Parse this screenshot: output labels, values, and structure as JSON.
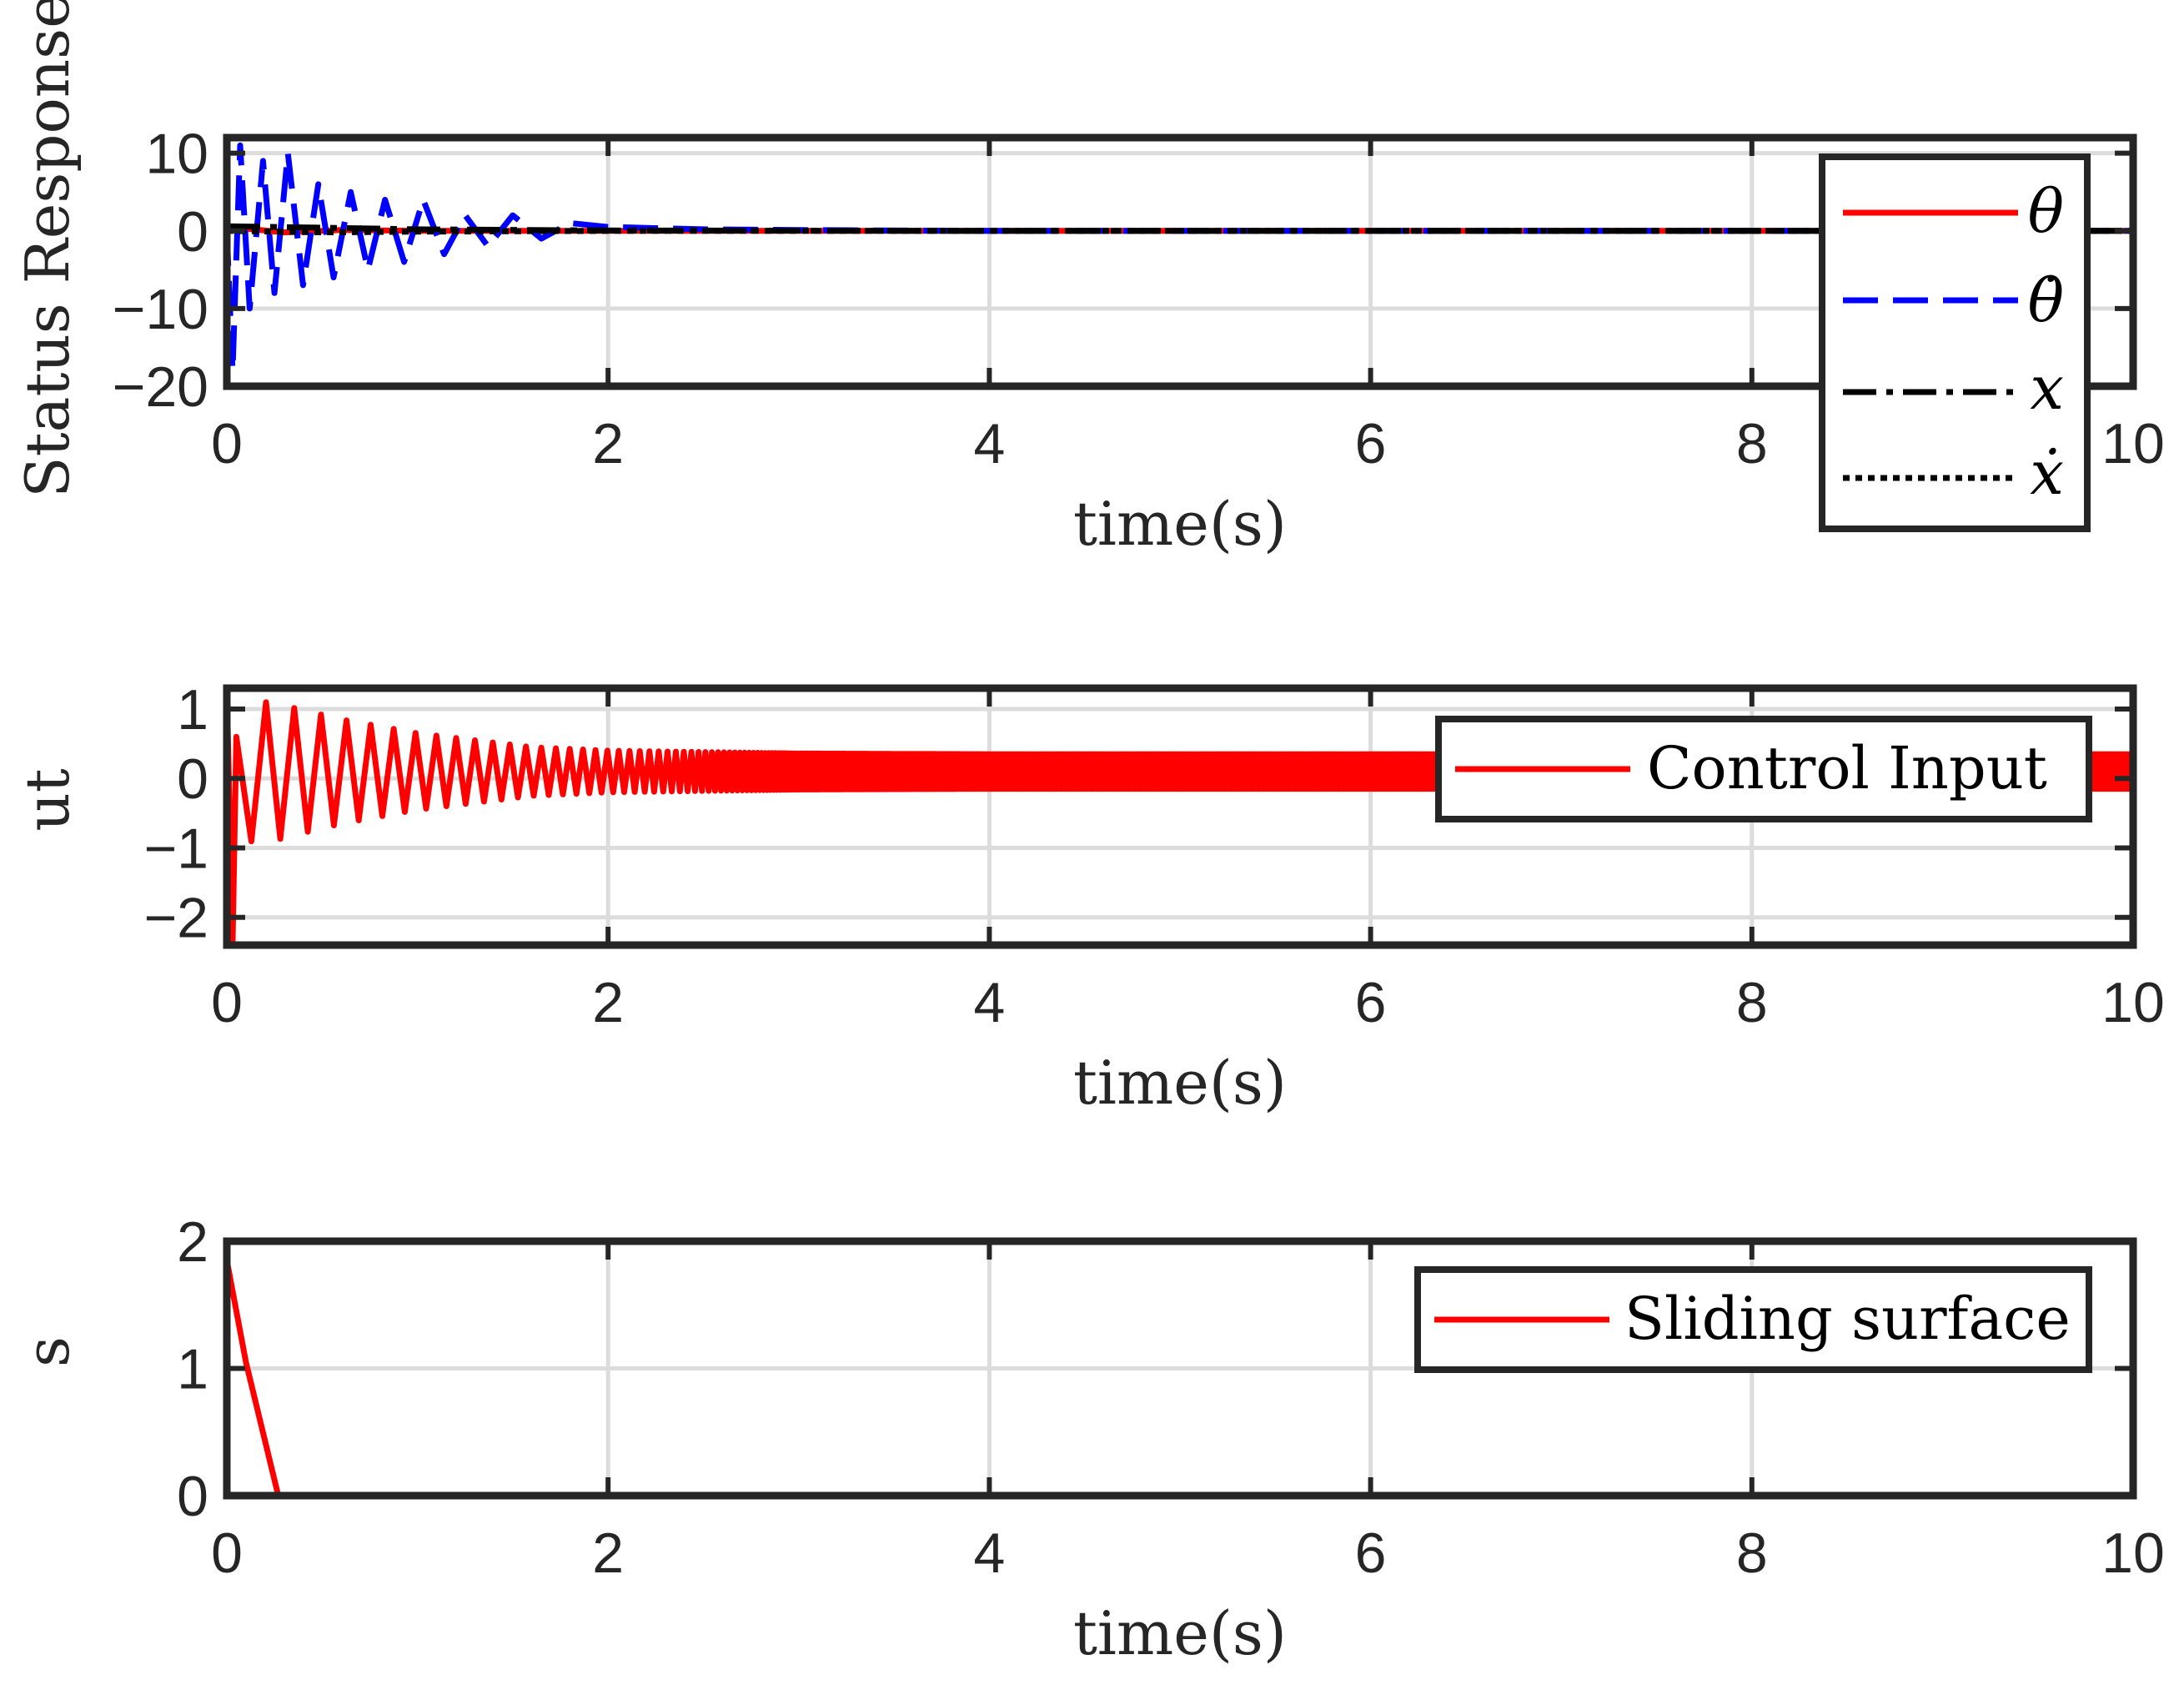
{
  "chart_data": [
    {
      "type": "line",
      "title": "",
      "xlabel": "time(s)",
      "ylabel": "Status Response",
      "xlim": [
        0,
        10
      ],
      "ylim": [
        -20,
        12
      ],
      "xticks": [
        "0",
        "2",
        "4",
        "6",
        "8",
        "10"
      ],
      "yticks": [
        "10",
        "0",
        "−10",
        "−20"
      ],
      "ytick_values": [
        10,
        0,
        -10,
        -20
      ],
      "grid": true,
      "legend_position": "top-right",
      "series": [
        {
          "name": "θ",
          "color": "#ff0000",
          "style": "solid",
          "x": [
            0,
            0.1,
            0.3,
            0.6,
            1.0,
            2.0,
            4.0,
            6.0,
            8.0,
            10.0
          ],
          "values": [
            0.5,
            0.3,
            -0.2,
            0.1,
            0.0,
            0.0,
            0.0,
            0.0,
            0.0,
            0.0
          ]
        },
        {
          "name": "θ̇",
          "color": "#0000ff",
          "style": "dashed",
          "x": [
            0,
            0.03,
            0.07,
            0.12,
            0.19,
            0.25,
            0.32,
            0.4,
            0.48,
            0.56,
            0.65,
            0.74,
            0.83,
            0.93,
            1.03,
            1.14,
            1.25,
            1.37,
            1.5,
            1.65,
            1.8,
            2.0,
            2.5,
            3.0,
            4.0,
            6.0,
            8.0,
            10.0
          ],
          "values": [
            0,
            -18,
            11,
            -10,
            9,
            -8,
            10,
            -7,
            6,
            -6,
            5,
            -5,
            4,
            -4,
            4,
            -3,
            2,
            -2,
            2,
            -1,
            1,
            0.5,
            0.2,
            0.1,
            0.0,
            0.0,
            0.0,
            0.0
          ]
        },
        {
          "name": "x",
          "color": "#000000",
          "style": "dashdot",
          "x": [
            0,
            0.5,
            1.0,
            2.0,
            4.0,
            6.0,
            8.0,
            10.0
          ],
          "values": [
            0.6,
            0.4,
            0.2,
            0.05,
            0.0,
            0.0,
            0.0,
            0.0
          ]
        },
        {
          "name": "ẋ",
          "color": "#000000",
          "style": "dotted",
          "x": [
            0,
            0.5,
            1.0,
            2.0,
            4.0,
            6.0,
            8.0,
            10.0
          ],
          "values": [
            0.0,
            -0.2,
            -0.1,
            0.0,
            0.0,
            0.0,
            0.0,
            0.0
          ]
        }
      ]
    },
    {
      "type": "line",
      "title": "",
      "xlabel": "time(s)",
      "ylabel": "ut",
      "xlim": [
        0,
        10
      ],
      "ylim": [
        -2.4,
        1.3
      ],
      "xticks": [
        "0",
        "2",
        "4",
        "6",
        "8",
        "10"
      ],
      "yticks": [
        "1",
        "0",
        "−1",
        "−2"
      ],
      "ytick_values": [
        1,
        0,
        -1,
        -2
      ],
      "grid": true,
      "legend_position": "top-right",
      "oscillation_envelope": {
        "x": [
          0,
          0.05,
          0.12,
          0.2,
          0.3,
          0.45,
          0.6,
          0.8,
          1.0,
          1.3,
          1.6,
          2.0,
          2.5,
          3.0,
          4.0,
          10.0
        ],
        "upper": [
          1.3,
          0.6,
          0.8,
          1.1,
          1.05,
          0.95,
          0.85,
          0.75,
          0.65,
          0.55,
          0.45,
          0.4,
          0.38,
          0.36,
          0.35,
          0.35
        ],
        "lower": [
          -2.4,
          -2.4,
          -0.9,
          -0.95,
          -0.85,
          -0.75,
          -0.65,
          -0.55,
          -0.45,
          -0.35,
          -0.25,
          -0.2,
          -0.18,
          -0.16,
          -0.15,
          -0.15
        ]
      },
      "series": [
        {
          "name": "Control Input",
          "color": "#ff0000",
          "style": "solid",
          "x": [
            0,
            0.03,
            0.05,
            0.12,
            0.2,
            0.3,
            0.45,
            0.6,
            0.8,
            1.0,
            1.5,
            2.0,
            3.0,
            10.0
          ],
          "values": [
            1.3,
            -2.4,
            0.6,
            0.8,
            -0.9,
            1.1,
            -0.8,
            0.8,
            -0.6,
            0.6,
            -0.3,
            0.3,
            0.2,
            0.1
          ]
        }
      ]
    },
    {
      "type": "line",
      "title": "",
      "xlabel": "time(s)",
      "ylabel": "s",
      "xlim": [
        0,
        10
      ],
      "ylim": [
        0,
        2
      ],
      "xticks": [
        "0",
        "2",
        "4",
        "6",
        "8",
        "10"
      ],
      "yticks": [
        "2",
        "1",
        "0"
      ],
      "ytick_values": [
        2,
        1,
        0
      ],
      "grid": true,
      "legend_position": "top-right",
      "series": [
        {
          "name": "Sliding surface",
          "color": "#ff0000",
          "style": "solid",
          "x": [
            0,
            0.1,
            0.27,
            0.5,
            1.0,
            2.0,
            4.0,
            6.0,
            8.0,
            10.0
          ],
          "values": [
            1.85,
            1.05,
            0.0,
            0.0,
            0.0,
            0.0,
            0.0,
            0.0,
            0.0,
            0.0
          ]
        }
      ]
    }
  ]
}
